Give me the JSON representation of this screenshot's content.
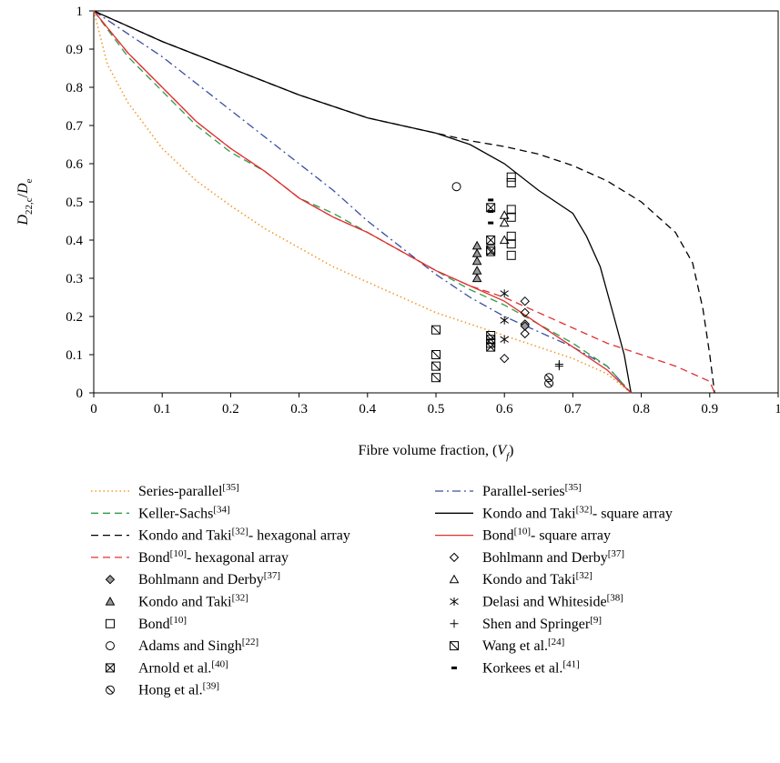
{
  "chart_data": {
    "type": "line",
    "xlabel_main": "Fibre volume fraction, (",
    "xlabel_var": "V",
    "xlabel_sub": "f",
    "xlabel_close": ")",
    "ylabel_main": "D",
    "ylabel_sub": "22,c",
    "ylabel_slash": "/",
    "ylabel_den": "D",
    "ylabel_den_sub": "e",
    "xlim": [
      0,
      1
    ],
    "ylim": [
      0,
      1
    ],
    "x_ticks": [
      0,
      0.1,
      0.2,
      0.3,
      0.4,
      0.5,
      0.6,
      0.7,
      0.8,
      0.9,
      1
    ],
    "x_tick_labels": [
      "0",
      "0.1",
      "0.2",
      "0.3",
      "0.4",
      "0.5",
      "0.6",
      "0.7",
      "0.8",
      "0.9",
      "1"
    ],
    "y_ticks": [
      0,
      0.1,
      0.2,
      0.3,
      0.4,
      0.5,
      0.6,
      0.7,
      0.8,
      0.9,
      1
    ],
    "y_tick_labels": [
      "0",
      "0.1",
      "0.2",
      "0.3",
      "0.4",
      "0.5",
      "0.6",
      "0.7",
      "0.8",
      "0.9",
      "1"
    ],
    "grid": false,
    "legend_placement": "below",
    "lines": [
      {
        "name": "Series-parallel",
        "ref": "[35]",
        "color": "#f39a2e",
        "dash": "dot",
        "x": [
          0,
          0.02,
          0.05,
          0.1,
          0.15,
          0.2,
          0.25,
          0.3,
          0.35,
          0.4,
          0.45,
          0.5,
          0.55,
          0.6,
          0.65,
          0.7,
          0.75,
          0.785
        ],
        "y": [
          1,
          0.86,
          0.76,
          0.64,
          0.555,
          0.49,
          0.43,
          0.38,
          0.33,
          0.29,
          0.25,
          0.21,
          0.18,
          0.15,
          0.12,
          0.09,
          0.05,
          0
        ]
      },
      {
        "name": "Parallel-series",
        "ref": "[35]",
        "color": "#3a4fa0",
        "dash": "dashdot",
        "x": [
          0,
          0.05,
          0.1,
          0.15,
          0.2,
          0.25,
          0.3,
          0.35,
          0.4,
          0.45,
          0.5,
          0.55,
          0.6,
          0.65,
          0.7,
          0.75,
          0.785
        ],
        "y": [
          1,
          0.94,
          0.88,
          0.81,
          0.74,
          0.67,
          0.6,
          0.53,
          0.45,
          0.38,
          0.31,
          0.25,
          0.2,
          0.16,
          0.12,
          0.07,
          0
        ]
      },
      {
        "name": "Keller-Sachs",
        "ref": "[34]",
        "color": "#2e9c48",
        "dash": "dash",
        "x": [
          0,
          0.05,
          0.1,
          0.15,
          0.2,
          0.25,
          0.3,
          0.35,
          0.4,
          0.45,
          0.5,
          0.55,
          0.6,
          0.65,
          0.7,
          0.75,
          0.785
        ],
        "y": [
          1,
          0.88,
          0.79,
          0.7,
          0.63,
          0.58,
          0.51,
          0.47,
          0.42,
          0.37,
          0.32,
          0.27,
          0.23,
          0.18,
          0.13,
          0.07,
          0
        ]
      },
      {
        "name": "Kondo and Taki",
        "ref": "[32]",
        "suffix": "- square array",
        "color": "#000000",
        "dash": "solid",
        "x": [
          0,
          0.1,
          0.2,
          0.3,
          0.4,
          0.5,
          0.55,
          0.6,
          0.65,
          0.7,
          0.72,
          0.74,
          0.76,
          0.775,
          0.785
        ],
        "y": [
          1,
          0.92,
          0.85,
          0.78,
          0.72,
          0.68,
          0.65,
          0.6,
          0.53,
          0.47,
          0.41,
          0.33,
          0.2,
          0.1,
          0
        ]
      },
      {
        "name": "Kondo and Taki",
        "ref": "[32]",
        "suffix": "- hexagonal array",
        "color": "#000000",
        "dash": "dash",
        "x": [
          0,
          0.1,
          0.2,
          0.3,
          0.4,
          0.5,
          0.55,
          0.6,
          0.65,
          0.7,
          0.75,
          0.8,
          0.85,
          0.875,
          0.89,
          0.9,
          0.907
        ],
        "y": [
          1,
          0.92,
          0.85,
          0.78,
          0.72,
          0.68,
          0.66,
          0.645,
          0.625,
          0.595,
          0.555,
          0.5,
          0.42,
          0.34,
          0.22,
          0.1,
          0
        ]
      },
      {
        "name": "Bond",
        "ref": "[10]",
        "suffix": "- square array",
        "color": "#e03030",
        "dash": "solid",
        "x": [
          0,
          0.05,
          0.1,
          0.15,
          0.2,
          0.25,
          0.3,
          0.35,
          0.4,
          0.45,
          0.5,
          0.55,
          0.6,
          0.65,
          0.7,
          0.75,
          0.785
        ],
        "y": [
          1,
          0.89,
          0.8,
          0.71,
          0.64,
          0.58,
          0.51,
          0.46,
          0.42,
          0.37,
          0.32,
          0.28,
          0.24,
          0.18,
          0.12,
          0.06,
          0
        ]
      },
      {
        "name": "Bond",
        "ref": "[10]",
        "suffix": "- hexagonal array",
        "color": "#e03030",
        "dash": "dash",
        "x": [
          0,
          0.05,
          0.1,
          0.15,
          0.2,
          0.25,
          0.3,
          0.35,
          0.4,
          0.45,
          0.5,
          0.55,
          0.6,
          0.65,
          0.7,
          0.75,
          0.8,
          0.85,
          0.9,
          0.907
        ],
        "y": [
          1,
          0.89,
          0.8,
          0.71,
          0.64,
          0.58,
          0.51,
          0.46,
          0.42,
          0.37,
          0.32,
          0.28,
          0.25,
          0.21,
          0.17,
          0.13,
          0.1,
          0.07,
          0.03,
          0
        ]
      }
    ],
    "points": [
      {
        "name": "Bohlmann and Derby",
        "ref": "[37]",
        "marker": "diamond-open",
        "data": [
          [
            0.6,
            0.09
          ],
          [
            0.63,
            0.155
          ],
          [
            0.63,
            0.18
          ],
          [
            0.63,
            0.21
          ],
          [
            0.63,
            0.24
          ]
        ]
      },
      {
        "name": "Bohlmann and Derby",
        "ref": "[37]",
        "marker": "diamond-filled",
        "data": [
          [
            0.63,
            0.175
          ]
        ]
      },
      {
        "name": "Kondo and Taki",
        "ref": "[32]",
        "marker": "triangle-open",
        "data": [
          [
            0.6,
            0.4
          ],
          [
            0.6,
            0.445
          ],
          [
            0.6,
            0.465
          ]
        ]
      },
      {
        "name": "Kondo and Taki",
        "ref": "[32]",
        "marker": "triangle-filled",
        "data": [
          [
            0.56,
            0.3
          ],
          [
            0.56,
            0.32
          ],
          [
            0.56,
            0.345
          ],
          [
            0.56,
            0.365
          ],
          [
            0.56,
            0.385
          ]
        ]
      },
      {
        "name": "Delasi and Whiteside",
        "ref": "[38]",
        "marker": "star",
        "data": [
          [
            0.6,
            0.14
          ],
          [
            0.6,
            0.19
          ],
          [
            0.6,
            0.26
          ]
        ]
      },
      {
        "name": "Bond",
        "ref": "[10]",
        "marker": "square-open",
        "data": [
          [
            0.61,
            0.36
          ],
          [
            0.61,
            0.39
          ],
          [
            0.61,
            0.41
          ],
          [
            0.61,
            0.46
          ],
          [
            0.61,
            0.48
          ],
          [
            0.61,
            0.55
          ],
          [
            0.61,
            0.565
          ]
        ]
      },
      {
        "name": "Shen and Springer",
        "ref": "[9]",
        "marker": "plus",
        "data": [
          [
            0.68,
            0.07
          ],
          [
            0.68,
            0.075
          ]
        ]
      },
      {
        "name": "Adams and Singh",
        "ref": "[22]",
        "marker": "circle-open",
        "data": [
          [
            0.53,
            0.54
          ]
        ]
      },
      {
        "name": "Wang et al.",
        "ref": "[24]",
        "marker": "square-slash",
        "data": [
          [
            0.5,
            0.04
          ],
          [
            0.5,
            0.07
          ],
          [
            0.5,
            0.1
          ],
          [
            0.5,
            0.165
          ],
          [
            0.58,
            0.13
          ],
          [
            0.58,
            0.15
          ],
          [
            0.58,
            0.375
          ]
        ]
      },
      {
        "name": "Arnold et al.",
        "ref": "[40]",
        "marker": "square-x",
        "data": [
          [
            0.58,
            0.12
          ],
          [
            0.58,
            0.14
          ],
          [
            0.58,
            0.37
          ],
          [
            0.58,
            0.4
          ],
          [
            0.58,
            0.485
          ]
        ]
      },
      {
        "name": "Korkees et al.",
        "ref": "[41]",
        "marker": "bar",
        "data": [
          [
            0.58,
            0.445
          ],
          [
            0.58,
            0.475
          ],
          [
            0.58,
            0.505
          ]
        ]
      },
      {
        "name": "Hong et al.",
        "ref": "[39]",
        "marker": "circle-slash",
        "data": [
          [
            0.665,
            0.025
          ],
          [
            0.665,
            0.04
          ]
        ]
      }
    ],
    "legend": [
      {
        "series": "line",
        "index": 0
      },
      {
        "series": "line",
        "index": 1
      },
      {
        "series": "line",
        "index": 2
      },
      {
        "series": "line",
        "index": 3
      },
      {
        "series": "line",
        "index": 4
      },
      {
        "series": "line",
        "index": 5
      },
      {
        "series": "line",
        "index": 6
      },
      {
        "series": "point",
        "index": 0
      },
      {
        "series": "point",
        "index": 1
      },
      {
        "series": "point",
        "index": 2
      },
      {
        "series": "point",
        "index": 3
      },
      {
        "series": "point",
        "index": 4
      },
      {
        "series": "point",
        "index": 5
      },
      {
        "series": "point",
        "index": 6
      },
      {
        "series": "point",
        "index": 7
      },
      {
        "series": "point",
        "index": 8
      },
      {
        "series": "point",
        "index": 9
      },
      {
        "series": "point",
        "index": 10
      },
      {
        "series": "point",
        "index": 11
      }
    ]
  }
}
